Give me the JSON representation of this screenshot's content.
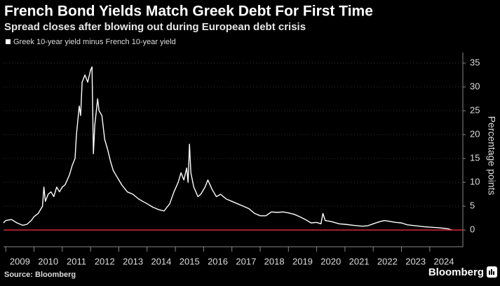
{
  "chart_data": {
    "type": "line",
    "title": "French Bond Yields Match Greek Debt For First Time",
    "subtitle": "Spread closes after blowing out during European debt crisis",
    "y_axis_label": "Percentage points",
    "source": "Source: Bloomberg",
    "brand": "Bloomberg",
    "xlim": [
      2008.92,
      2025.17
    ],
    "ylim": [
      -3.5,
      37.2
    ],
    "yticks": [
      0,
      5,
      10,
      15,
      20,
      25,
      30,
      35
    ],
    "xticks": [
      {
        "value": 2009.5,
        "label": "2009"
      },
      {
        "value": 2010.5,
        "label": "2010"
      },
      {
        "value": 2011.5,
        "label": "2011"
      },
      {
        "value": 2012.5,
        "label": "2012"
      },
      {
        "value": 2013.5,
        "label": "2013"
      },
      {
        "value": 2014.5,
        "label": "2014"
      },
      {
        "value": 2015.5,
        "label": "2015"
      },
      {
        "value": 2016.5,
        "label": "2016"
      },
      {
        "value": 2017.5,
        "label": "2017"
      },
      {
        "value": 2018.5,
        "label": "2018"
      },
      {
        "value": 2019.5,
        "label": "2019"
      },
      {
        "value": 2020.5,
        "label": "2020"
      },
      {
        "value": 2021.5,
        "label": "2021"
      },
      {
        "value": 2022.5,
        "label": "2022"
      },
      {
        "value": 2023.5,
        "label": "2023"
      },
      {
        "value": 2024.5,
        "label": "2024"
      }
    ],
    "grid": true,
    "reference_line": {
      "value": 0,
      "color": "#d7263d"
    },
    "x": [
      2008.92,
      2009.0,
      2009.2,
      2009.4,
      2009.6,
      2009.75,
      2009.9,
      2010.0,
      2010.15,
      2010.3,
      2010.35,
      2010.4,
      2010.5,
      2010.6,
      2010.7,
      2010.8,
      2010.9,
      2011.0,
      2011.1,
      2011.25,
      2011.35,
      2011.45,
      2011.5,
      2011.6,
      2011.65,
      2011.7,
      2011.8,
      2011.9,
      2012.0,
      2012.05,
      2012.1,
      2012.15,
      2012.25,
      2012.3,
      2012.4,
      2012.5,
      2012.6,
      2012.7,
      2012.8,
      2012.95,
      2013.1,
      2013.3,
      2013.5,
      2013.7,
      2013.85,
      2014.0,
      2014.2,
      2014.4,
      2014.6,
      2014.8,
      2014.95,
      2015.1,
      2015.2,
      2015.3,
      2015.4,
      2015.45,
      2015.5,
      2015.55,
      2015.65,
      2015.8,
      2015.9,
      2016.05,
      2016.15,
      2016.3,
      2016.45,
      2016.6,
      2016.8,
      2017.0,
      2017.2,
      2017.4,
      2017.6,
      2017.8,
      2018.0,
      2018.2,
      2018.4,
      2018.6,
      2018.8,
      2019.0,
      2019.2,
      2019.4,
      2019.6,
      2019.8,
      2020.0,
      2020.15,
      2020.22,
      2020.3,
      2020.5,
      2020.8,
      2021.0,
      2021.3,
      2021.6,
      2021.8,
      2022.0,
      2022.2,
      2022.4,
      2022.6,
      2022.8,
      2023.0,
      2023.2,
      2023.5,
      2023.8,
      2024.0,
      2024.3,
      2024.6,
      2024.8
    ],
    "series": [
      {
        "name": "Greek 10-year yield minus French 10-year yield",
        "color": "#ffffff",
        "values": [
          1.5,
          2.0,
          2.2,
          1.5,
          1.0,
          1.2,
          2.0,
          2.8,
          3.5,
          5.0,
          9.0,
          6.0,
          7.5,
          8.0,
          7.0,
          9.0,
          8.0,
          9.0,
          9.5,
          11.5,
          13.5,
          15.0,
          20.0,
          26.0,
          24.0,
          31.0,
          32.5,
          31.0,
          33.5,
          34.2,
          16.0,
          22.0,
          27.5,
          25.0,
          24.0,
          19.0,
          17.0,
          14.5,
          12.5,
          11.0,
          9.5,
          8.0,
          7.5,
          6.5,
          6.0,
          5.5,
          4.8,
          4.3,
          4.0,
          5.5,
          8.0,
          10.0,
          12.0,
          10.5,
          13.0,
          10.0,
          18.0,
          12.0,
          9.0,
          7.0,
          7.5,
          9.0,
          10.5,
          8.5,
          7.0,
          7.5,
          6.5,
          6.0,
          5.5,
          5.0,
          4.5,
          3.5,
          3.0,
          3.0,
          3.8,
          3.7,
          3.8,
          3.6,
          3.3,
          2.8,
          2.2,
          1.5,
          1.6,
          1.3,
          3.5,
          2.0,
          1.8,
          1.3,
          1.2,
          1.0,
          0.8,
          0.9,
          1.3,
          1.7,
          2.0,
          1.8,
          1.6,
          1.5,
          1.1,
          0.9,
          0.7,
          0.6,
          0.5,
          0.3,
          0.0
        ]
      }
    ]
  }
}
